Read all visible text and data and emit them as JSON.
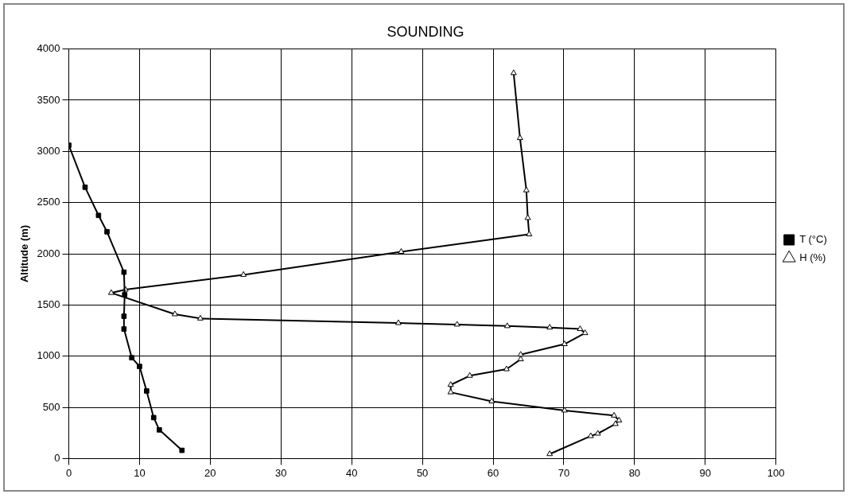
{
  "chart_data": {
    "type": "line",
    "title": "SOUNDING",
    "ylabel": "Altitude (m)",
    "xlim": [
      0,
      100
    ],
    "xticks": [
      0,
      10,
      20,
      30,
      40,
      50,
      60,
      70,
      80,
      90,
      100
    ],
    "ylim": [
      0,
      4000
    ],
    "yticks": [
      0,
      500,
      1000,
      1500,
      2000,
      2500,
      3000,
      3500,
      4000
    ],
    "grid": true,
    "legend": "right",
    "line_style": "solid",
    "series": [
      {
        "name": "T (°C)",
        "color": "#000000",
        "marker": "square",
        "x": [
          16,
          12.8,
          12,
          11,
          10,
          8.9,
          7.8,
          7.8,
          7.9,
          7.8,
          5.4,
          4.2,
          2.3,
          0
        ],
        "values": [
          80,
          280,
          400,
          660,
          900,
          985,
          1265,
          1390,
          1600,
          1820,
          2215,
          2375,
          2650,
          3060
        ]
      },
      {
        "name": "H (%)",
        "color": "#000000",
        "marker": "triangle",
        "x": [
          68,
          73.8,
          74.8,
          77.3,
          77.8,
          77.1,
          70.1,
          59.8,
          54,
          54,
          56.7,
          61.9,
          63.9,
          63.9,
          70.1,
          73,
          72.3,
          68,
          62,
          54.9,
          46.6,
          18.6,
          15,
          6,
          8,
          24.7,
          47,
          65.1,
          64.9,
          64.7,
          63.8,
          62.9
        ],
        "values": [
          44,
          220,
          244,
          338,
          373,
          420,
          470,
          559,
          647,
          720,
          809,
          873,
          970,
          1015,
          1118,
          1226,
          1265,
          1280,
          1294,
          1309,
          1324,
          1368,
          1410,
          1618,
          1650,
          1795,
          2020,
          2190,
          2350,
          2620,
          3130,
          3765
        ]
      }
    ]
  }
}
